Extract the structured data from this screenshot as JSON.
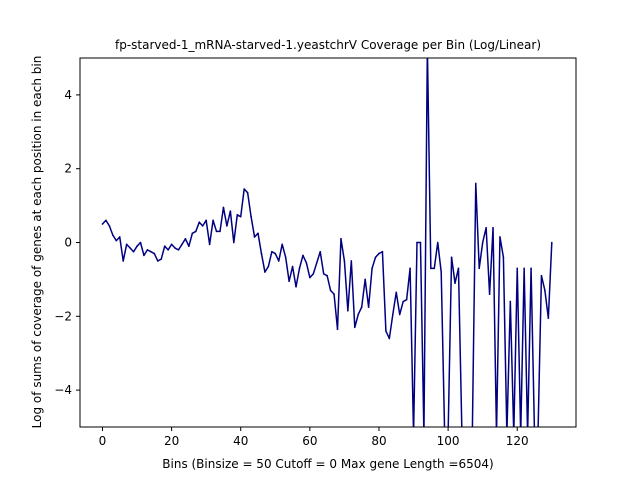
{
  "chart_data": {
    "type": "line",
    "title": "fp-starved-1_mRNA-starved-1.yeastchrV Coverage per Bin (Log/Linear)",
    "xlabel": "Bins  (Binsize = 50 Cutoff = 0 Max gene Length =6504)",
    "ylabel": "Log of sums of coverage of genes at each position in each bin",
    "xlim": [
      -6.5,
      137
    ],
    "ylim": [
      -5,
      5
    ],
    "xticks": [
      0,
      20,
      40,
      60,
      80,
      100,
      120
    ],
    "yticks": [
      -4,
      -2,
      0,
      2,
      4
    ],
    "grid": false,
    "series": [
      {
        "color": "#000080",
        "x": [
          0,
          1,
          2,
          3,
          4,
          5,
          6,
          7,
          8,
          9,
          10,
          11,
          12,
          13,
          14,
          15,
          16,
          17,
          18,
          19,
          20,
          21,
          22,
          23,
          24,
          25,
          26,
          27,
          28,
          29,
          30,
          31,
          32,
          33,
          34,
          35,
          36,
          37,
          38,
          39,
          40,
          41,
          42,
          43,
          44,
          45,
          46,
          47,
          48,
          49,
          50,
          51,
          52,
          53,
          54,
          55,
          56,
          57,
          58,
          59,
          60,
          61,
          62,
          63,
          64,
          65,
          66,
          67,
          68,
          69,
          70,
          71,
          72,
          73,
          74,
          75,
          76,
          77,
          78,
          79,
          80,
          81,
          82,
          83,
          84,
          85,
          86,
          87,
          88,
          89,
          90,
          91,
          92,
          93,
          94,
          95,
          96,
          97,
          98,
          99,
          100,
          101,
          102,
          103,
          104,
          105,
          106,
          107,
          108,
          109,
          110,
          111,
          112,
          113,
          114,
          115,
          116,
          117,
          118,
          119,
          120,
          121,
          122,
          123,
          124,
          125,
          126,
          127,
          128,
          129,
          130
        ],
        "y": [
          0.5,
          0.6,
          0.45,
          0.2,
          0.05,
          0.15,
          -0.5,
          -0.05,
          -0.15,
          -0.25,
          -0.1,
          0.0,
          -0.35,
          -0.2,
          -0.25,
          -0.3,
          -0.5,
          -0.45,
          -0.1,
          -0.2,
          -0.05,
          -0.15,
          -0.2,
          -0.05,
          0.1,
          -0.1,
          0.25,
          0.3,
          0.55,
          0.45,
          0.6,
          -0.05,
          0.6,
          0.3,
          0.3,
          0.95,
          0.45,
          0.85,
          0.0,
          0.75,
          0.7,
          1.45,
          1.35,
          0.7,
          0.15,
          0.25,
          -0.3,
          -0.8,
          -0.65,
          -0.25,
          -0.3,
          -0.5,
          -0.05,
          -0.4,
          -1.05,
          -0.65,
          -1.2,
          -0.7,
          -0.35,
          -0.55,
          -0.95,
          -0.85,
          -0.55,
          -0.25,
          -0.85,
          -0.9,
          -1.3,
          -1.4,
          -2.35,
          0.1,
          -0.5,
          -1.85,
          -0.5,
          -2.3,
          -1.95,
          -1.75,
          -1.0,
          -1.75,
          -0.7,
          -0.4,
          -0.3,
          -0.25,
          -2.4,
          -2.6,
          -1.95,
          -1.35,
          -1.95,
          -1.6,
          -1.55,
          -0.7,
          -5.2,
          0.0,
          0.0,
          -5.2,
          5.3,
          -0.7,
          -0.7,
          0.0,
          -0.8,
          -5.2,
          -5.2,
          -0.4,
          -1.1,
          -0.7,
          -5.2,
          -5.2,
          -5.2,
          -5.2,
          1.6,
          -0.7,
          0.0,
          0.4,
          -1.4,
          0.4,
          -5.2,
          0.15,
          -0.4,
          -5.2,
          -1.6,
          -5.2,
          -0.7,
          -5.2,
          -0.7,
          -5.2,
          -0.7,
          -5.2,
          -5.2,
          -0.9,
          -1.3,
          -2.05,
          0.0
        ]
      }
    ]
  }
}
